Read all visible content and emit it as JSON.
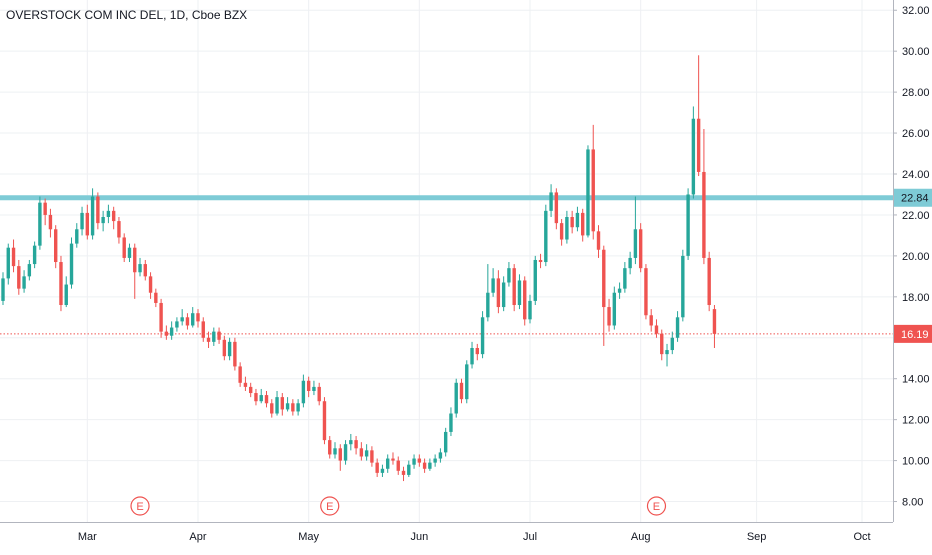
{
  "chart_data": {
    "type": "candlestick",
    "title": "OVERSTOCK COM INC DEL, 1D, Cboe BZX",
    "xlabel": "",
    "ylabel": "",
    "ylim": [
      7.0,
      32.5
    ],
    "yticks": [
      "8.00",
      "10.00",
      "12.00",
      "14.00",
      "16.00",
      "18.00",
      "20.00",
      "22.00",
      "24.00",
      "26.00",
      "28.00",
      "30.00",
      "32.00"
    ],
    "x_tick_labels": [
      "Mar",
      "Apr",
      "May",
      "Jun",
      "Jul",
      "Aug",
      "Sep",
      "Oct"
    ],
    "x_tick_index": [
      16,
      37,
      58,
      79,
      100,
      121,
      143,
      163
    ],
    "grid": true,
    "colors": {
      "up": "#26a69a",
      "down": "#ef5350",
      "horizontal_line": "#7ecbd6",
      "price_line": "#ef5350",
      "grid": "#eef0f3",
      "axis_text": "#131722"
    },
    "horizontal_level": {
      "value": 22.84,
      "label": "22.84"
    },
    "last_price": {
      "value": 16.19,
      "label": "16.19"
    },
    "earnings_markers": {
      "label": "E",
      "bar_index": [
        26,
        62,
        124
      ]
    },
    "candles": [
      [
        17.8,
        18.9,
        19.2,
        17.6
      ],
      [
        18.9,
        20.4,
        20.6,
        18.6
      ],
      [
        20.4,
        19.5,
        20.8,
        19.2
      ],
      [
        19.5,
        18.4,
        19.8,
        18.1
      ],
      [
        18.4,
        19.0,
        19.3,
        18.2
      ],
      [
        19.0,
        19.6,
        19.8,
        18.8
      ],
      [
        19.6,
        20.5,
        20.7,
        19.4
      ],
      [
        20.5,
        22.6,
        22.9,
        20.3
      ],
      [
        22.6,
        22.0,
        22.8,
        21.5
      ],
      [
        22.0,
        21.3,
        22.3,
        20.9
      ],
      [
        21.3,
        19.7,
        21.5,
        19.4
      ],
      [
        19.7,
        17.6,
        20.0,
        17.3
      ],
      [
        17.6,
        18.6,
        19.0,
        17.5
      ],
      [
        18.6,
        20.6,
        20.9,
        18.4
      ],
      [
        20.6,
        21.3,
        21.6,
        20.4
      ],
      [
        21.3,
        22.1,
        22.4,
        21.0
      ],
      [
        22.1,
        21.0,
        22.5,
        20.8
      ],
      [
        21.0,
        22.9,
        23.3,
        20.8
      ],
      [
        22.9,
        21.6,
        23.1,
        21.3
      ],
      [
        21.6,
        21.9,
        22.2,
        21.2
      ],
      [
        21.9,
        22.2,
        22.5,
        21.6
      ],
      [
        22.2,
        21.7,
        22.4,
        21.3
      ],
      [
        21.7,
        20.9,
        21.9,
        20.6
      ],
      [
        20.9,
        19.9,
        21.1,
        19.7
      ],
      [
        19.9,
        20.4,
        20.6,
        19.7
      ],
      [
        20.4,
        19.2,
        20.6,
        17.9
      ],
      [
        19.2,
        19.6,
        19.9,
        19.0
      ],
      [
        19.6,
        19.0,
        19.8,
        18.8
      ],
      [
        19.0,
        18.2,
        19.2,
        17.9
      ],
      [
        18.2,
        17.7,
        18.4,
        17.5
      ],
      [
        17.7,
        16.3,
        17.9,
        16.0
      ],
      [
        16.3,
        16.1,
        16.6,
        15.9
      ],
      [
        16.1,
        16.5,
        16.8,
        15.9
      ],
      [
        16.5,
        16.8,
        17.0,
        16.3
      ],
      [
        16.8,
        17.0,
        17.4,
        16.6
      ],
      [
        17.0,
        16.6,
        17.2,
        16.4
      ],
      [
        16.6,
        17.2,
        17.5,
        16.5
      ],
      [
        17.2,
        16.8,
        17.4,
        16.5
      ],
      [
        16.8,
        16.0,
        17.0,
        15.8
      ],
      [
        16.0,
        15.8,
        16.3,
        15.5
      ],
      [
        15.8,
        16.3,
        16.5,
        15.6
      ],
      [
        16.3,
        15.9,
        16.5,
        15.7
      ],
      [
        15.9,
        15.1,
        16.1,
        14.9
      ],
      [
        15.1,
        15.8,
        16.0,
        14.9
      ],
      [
        15.8,
        14.6,
        16.0,
        14.4
      ],
      [
        14.6,
        13.8,
        14.8,
        13.6
      ],
      [
        13.8,
        13.6,
        14.1,
        13.4
      ],
      [
        13.6,
        13.3,
        13.8,
        13.1
      ],
      [
        13.3,
        12.9,
        13.5,
        12.7
      ],
      [
        12.9,
        13.2,
        13.5,
        12.8
      ],
      [
        13.2,
        12.8,
        13.4,
        12.6
      ],
      [
        12.8,
        12.3,
        13.0,
        12.1
      ],
      [
        12.3,
        13.1,
        13.4,
        12.2
      ],
      [
        13.1,
        12.5,
        13.3,
        12.2
      ],
      [
        12.5,
        12.8,
        13.1,
        12.4
      ],
      [
        12.8,
        12.4,
        13.0,
        12.2
      ],
      [
        12.4,
        12.8,
        13.0,
        12.2
      ],
      [
        12.8,
        13.9,
        14.2,
        12.6
      ],
      [
        13.9,
        13.4,
        14.1,
        13.1
      ],
      [
        13.4,
        13.6,
        13.9,
        13.2
      ],
      [
        13.6,
        12.9,
        13.8,
        12.7
      ],
      [
        12.9,
        11.0,
        13.1,
        10.8
      ],
      [
        11.0,
        10.3,
        11.2,
        10.1
      ],
      [
        10.3,
        10.6,
        10.9,
        10.1
      ],
      [
        10.6,
        10.0,
        10.8,
        9.5
      ],
      [
        10.0,
        10.8,
        11.0,
        9.8
      ],
      [
        10.8,
        11.0,
        11.3,
        10.5
      ],
      [
        11.0,
        10.6,
        11.2,
        10.3
      ],
      [
        10.6,
        10.2,
        10.9,
        10.0
      ],
      [
        10.2,
        10.5,
        10.8,
        10.0
      ],
      [
        10.5,
        9.9,
        10.7,
        9.7
      ],
      [
        9.9,
        9.4,
        10.1,
        9.2
      ],
      [
        9.4,
        9.6,
        9.8,
        9.2
      ],
      [
        9.6,
        10.1,
        10.3,
        9.4
      ],
      [
        10.1,
        10.0,
        10.4,
        9.8
      ],
      [
        10.0,
        9.5,
        10.2,
        9.3
      ],
      [
        9.5,
        9.3,
        9.7,
        9.0
      ],
      [
        9.3,
        9.8,
        10.0,
        9.2
      ],
      [
        9.8,
        10.1,
        10.3,
        9.6
      ],
      [
        10.1,
        9.9,
        10.3,
        9.7
      ],
      [
        9.9,
        9.6,
        10.1,
        9.4
      ],
      [
        9.6,
        9.9,
        10.1,
        9.5
      ],
      [
        9.9,
        10.1,
        10.3,
        9.7
      ],
      [
        10.1,
        10.4,
        10.6,
        9.9
      ],
      [
        10.4,
        11.4,
        11.6,
        10.2
      ],
      [
        11.4,
        12.3,
        12.6,
        11.2
      ],
      [
        12.3,
        13.8,
        14.0,
        12.1
      ],
      [
        13.8,
        13.0,
        14.0,
        12.8
      ],
      [
        13.0,
        14.7,
        14.9,
        12.8
      ],
      [
        14.7,
        15.5,
        15.8,
        14.5
      ],
      [
        15.5,
        15.2,
        15.7,
        14.9
      ],
      [
        15.2,
        17.0,
        17.3,
        15.0
      ],
      [
        17.0,
        18.2,
        19.6,
        16.8
      ],
      [
        18.2,
        18.9,
        19.4,
        18.0
      ],
      [
        18.9,
        17.5,
        19.3,
        17.2
      ],
      [
        17.5,
        18.7,
        19.0,
        17.3
      ],
      [
        18.7,
        19.4,
        19.7,
        18.5
      ],
      [
        19.4,
        17.6,
        19.6,
        17.3
      ],
      [
        17.6,
        18.8,
        19.1,
        17.4
      ],
      [
        18.8,
        16.9,
        19.0,
        16.6
      ],
      [
        16.9,
        17.8,
        18.1,
        16.7
      ],
      [
        17.8,
        19.8,
        20.0,
        17.6
      ],
      [
        19.8,
        19.7,
        20.1,
        19.4
      ],
      [
        19.7,
        22.2,
        22.5,
        19.5
      ],
      [
        22.2,
        23.1,
        23.5,
        21.9
      ],
      [
        23.1,
        21.6,
        23.3,
        21.3
      ],
      [
        21.6,
        20.8,
        21.8,
        20.5
      ],
      [
        20.8,
        21.9,
        22.2,
        20.6
      ],
      [
        21.9,
        21.4,
        22.2,
        21.1
      ],
      [
        21.4,
        22.1,
        22.4,
        21.2
      ],
      [
        22.1,
        21.0,
        22.3,
        20.7
      ],
      [
        21.0,
        25.2,
        25.4,
        20.9
      ],
      [
        25.2,
        21.2,
        26.4,
        20.8
      ],
      [
        21.2,
        20.3,
        21.5,
        19.9
      ],
      [
        20.3,
        17.5,
        20.5,
        15.6
      ],
      [
        17.5,
        16.6,
        17.9,
        16.3
      ],
      [
        16.6,
        18.2,
        18.5,
        16.4
      ],
      [
        18.2,
        18.4,
        18.7,
        17.9
      ],
      [
        18.4,
        19.4,
        19.7,
        18.2
      ],
      [
        19.4,
        19.9,
        20.2,
        19.1
      ],
      [
        19.9,
        21.3,
        22.9,
        19.6
      ],
      [
        21.3,
        19.4,
        21.6,
        19.2
      ],
      [
        19.4,
        17.1,
        19.6,
        16.9
      ],
      [
        17.1,
        16.6,
        17.4,
        16.3
      ],
      [
        16.6,
        16.2,
        16.9,
        16.0
      ],
      [
        16.2,
        15.2,
        16.4,
        14.9
      ],
      [
        15.2,
        15.4,
        15.7,
        14.6
      ],
      [
        15.4,
        16.0,
        16.3,
        15.2
      ],
      [
        16.0,
        17.0,
        17.3,
        15.8
      ],
      [
        17.0,
        20.0,
        20.3,
        16.8
      ],
      [
        20.0,
        23.0,
        23.3,
        19.8
      ],
      [
        23.0,
        26.7,
        27.3,
        22.8
      ],
      [
        26.7,
        24.1,
        29.8,
        23.9
      ],
      [
        24.1,
        19.9,
        26.2,
        19.6
      ],
      [
        19.9,
        17.6,
        20.2,
        17.3
      ],
      [
        17.4,
        16.19,
        17.6,
        15.5
      ]
    ]
  }
}
